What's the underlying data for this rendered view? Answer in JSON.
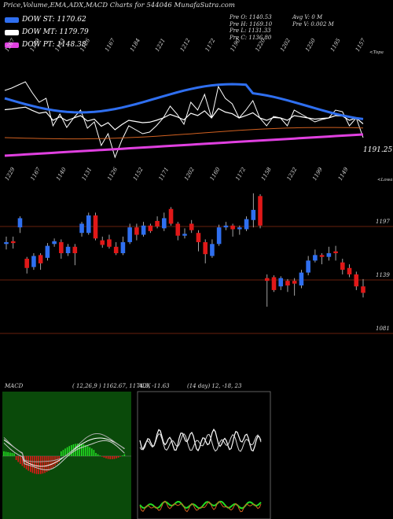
{
  "header": {
    "title": "Price,Volume,EMA,ADX,MACD Charts for 544046  MunafaSutra.com"
  },
  "legend": [
    {
      "label": "DOW ST: 1170.62",
      "color": "#2f6ff0"
    },
    {
      "label": "DOW MT: 1179.79",
      "color": "#ffffff"
    },
    {
      "label": "DOW PT: 1148.38",
      "color": "#e040e0"
    }
  ],
  "stats": {
    "col1": [
      "Pre  O: 1140.53",
      "Pre  H: 1169.10",
      "Pre  L: 1131.33",
      "Pre  C: 1136.80"
    ],
    "col2": [
      "Avg V: 0  M",
      "Pre  V: 0.002  M"
    ]
  },
  "colors": {
    "up": "#2f6ff0",
    "down": "#e01818",
    "ema_short": "#2f6ff0",
    "ema_mid": "#ffffff",
    "ema_long": "#e040e0",
    "macd_bg": "#0a4a0a",
    "adx_plus": "#22dd22",
    "adx_minus": "#d06020"
  },
  "chart_data": [
    {
      "type": "line",
      "name": "ema-panel",
      "top_labels": [
        "1267",
        "1179",
        "1143",
        "1126",
        "1167",
        "1184",
        "1221",
        "1212",
        "1172",
        "1190",
        "1220",
        "1202",
        "1250",
        "1195",
        "1157"
      ],
      "edge_label": "<Topa",
      "price_label": "1191.25"
    },
    {
      "type": "candlestick",
      "name": "price-panel",
      "top_labels": [
        "1229",
        "1167",
        "1140",
        "1131",
        "1126",
        "1152",
        "1171",
        "1202",
        "1160",
        "1172",
        "1158",
        "1232",
        "1199",
        "1149"
      ],
      "edge_label": "<Lowa",
      "y_ticks": [
        "1197",
        "1139",
        "1081"
      ],
      "candles": [
        {
          "o": 1178,
          "c": 1180,
          "h": 1186,
          "l": 1172
        },
        {
          "o": 1181,
          "c": 1179,
          "h": 1186,
          "l": 1173
        },
        {
          "o": 1196,
          "c": 1206,
          "h": 1208,
          "l": 1190
        },
        {
          "o": 1162,
          "c": 1152,
          "h": 1164,
          "l": 1146
        },
        {
          "o": 1153,
          "c": 1165,
          "h": 1168,
          "l": 1150
        },
        {
          "o": 1166,
          "c": 1157,
          "h": 1168,
          "l": 1150
        },
        {
          "o": 1163,
          "c": 1176,
          "h": 1179,
          "l": 1160
        },
        {
          "o": 1178,
          "c": 1181,
          "h": 1184,
          "l": 1175
        },
        {
          "o": 1180,
          "c": 1168,
          "h": 1183,
          "l": 1162
        },
        {
          "o": 1168,
          "c": 1175,
          "h": 1178,
          "l": 1165
        },
        {
          "o": 1175,
          "c": 1168,
          "h": 1178,
          "l": 1155
        },
        {
          "o": 1190,
          "c": 1200,
          "h": 1202,
          "l": 1186
        },
        {
          "o": 1190,
          "c": 1209,
          "h": 1212,
          "l": 1188
        },
        {
          "o": 1209,
          "c": 1184,
          "h": 1212,
          "l": 1182
        },
        {
          "o": 1182,
          "c": 1177,
          "h": 1186,
          "l": 1174
        },
        {
          "o": 1183,
          "c": 1175,
          "h": 1188,
          "l": 1173
        },
        {
          "o": 1175,
          "c": 1168,
          "h": 1180,
          "l": 1166
        },
        {
          "o": 1168,
          "c": 1180,
          "h": 1186,
          "l": 1166
        },
        {
          "o": 1180,
          "c": 1196,
          "h": 1200,
          "l": 1178
        },
        {
          "o": 1196,
          "c": 1188,
          "h": 1200,
          "l": 1182
        },
        {
          "o": 1188,
          "c": 1198,
          "h": 1202,
          "l": 1186
        },
        {
          "o": 1198,
          "c": 1192,
          "h": 1200,
          "l": 1190
        },
        {
          "o": 1203,
          "c": 1197,
          "h": 1208,
          "l": 1195
        },
        {
          "o": 1195,
          "c": 1206,
          "h": 1212,
          "l": 1192
        },
        {
          "o": 1216,
          "c": 1200,
          "h": 1218,
          "l": 1198
        },
        {
          "o": 1200,
          "c": 1187,
          "h": 1202,
          "l": 1182
        },
        {
          "o": 1187,
          "c": 1189,
          "h": 1195,
          "l": 1184
        },
        {
          "o": 1200,
          "c": 1193,
          "h": 1204,
          "l": 1190
        },
        {
          "o": 1190,
          "c": 1180,
          "h": 1193,
          "l": 1170
        },
        {
          "o": 1180,
          "c": 1167,
          "h": 1183,
          "l": 1157
        },
        {
          "o": 1165,
          "c": 1178,
          "h": 1183,
          "l": 1163
        },
        {
          "o": 1178,
          "c": 1196,
          "h": 1199,
          "l": 1176
        },
        {
          "o": 1196,
          "c": 1198,
          "h": 1202,
          "l": 1193
        },
        {
          "o": 1198,
          "c": 1194,
          "h": 1200,
          "l": 1186
        },
        {
          "o": 1194,
          "c": 1196,
          "h": 1198,
          "l": 1188
        },
        {
          "o": 1194,
          "c": 1205,
          "h": 1208,
          "l": 1192
        },
        {
          "o": 1204,
          "c": 1215,
          "h": 1233,
          "l": 1196
        },
        {
          "o": 1230,
          "c": 1198,
          "h": 1232,
          "l": 1195
        },
        {
          "o": 1141,
          "c": 1138,
          "h": 1145,
          "l": 1110
        },
        {
          "o": 1142,
          "c": 1128,
          "h": 1144,
          "l": 1126
        },
        {
          "o": 1132,
          "c": 1141,
          "h": 1143,
          "l": 1128
        },
        {
          "o": 1138,
          "c": 1133,
          "h": 1140,
          "l": 1126
        },
        {
          "o": 1138,
          "c": 1135,
          "h": 1141,
          "l": 1122
        },
        {
          "o": 1133,
          "c": 1147,
          "h": 1150,
          "l": 1130
        },
        {
          "o": 1147,
          "c": 1160,
          "h": 1165,
          "l": 1144
        },
        {
          "o": 1160,
          "c": 1166,
          "h": 1172,
          "l": 1158
        },
        {
          "o": 1166,
          "c": 1164,
          "h": 1168,
          "l": 1156
        },
        {
          "o": 1164,
          "c": 1168,
          "h": 1175,
          "l": 1160
        },
        {
          "o": 1170,
          "c": 1168,
          "h": 1176,
          "l": 1160
        },
        {
          "o": 1158,
          "c": 1150,
          "h": 1162,
          "l": 1145
        },
        {
          "o": 1152,
          "c": 1145,
          "h": 1156,
          "l": 1142
        },
        {
          "o": 1145,
          "c": 1132,
          "h": 1148,
          "l": 1128
        },
        {
          "o": 1132,
          "c": 1125,
          "h": 1140,
          "l": 1120
        }
      ]
    },
    {
      "type": "line",
      "name": "macd-panel",
      "title": "MACD",
      "params": "( 12,26,9 ) 1162.67,  1174.3,  -11.63"
    },
    {
      "type": "line",
      "name": "adx-panel",
      "title": "ADX",
      "params": "(14  day) 12,  -18,  23"
    }
  ]
}
